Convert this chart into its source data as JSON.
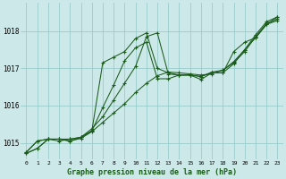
{
  "title": "Graphe pression niveau de la mer (hPa)",
  "bg_color": "#cce8e8",
  "grid_color": "#99cccc",
  "line_color": "#1a5c1a",
  "xlim": [
    -0.5,
    23.5
  ],
  "ylim": [
    1014.55,
    1018.75
  ],
  "yticks": [
    1015,
    1016,
    1017,
    1018
  ],
  "xtick_labels": [
    "0",
    "1",
    "2",
    "3",
    "4",
    "5",
    "6",
    "7",
    "8",
    "9",
    "10",
    "11",
    "12",
    "13",
    "14",
    "15",
    "16",
    "17",
    "18",
    "19",
    "20",
    "21",
    "22",
    "23"
  ],
  "series": [
    [
      1014.72,
      1014.85,
      1015.1,
      1015.1,
      1015.05,
      1015.12,
      1015.3,
      1015.55,
      1015.8,
      1016.05,
      1016.35,
      1016.6,
      1016.8,
      1016.9,
      1016.88,
      1016.85,
      1016.82,
      1016.85,
      1016.95,
      1017.15,
      1017.45,
      1017.85,
      1018.2,
      1018.32
    ],
    [
      1014.72,
      1014.85,
      1015.1,
      1015.1,
      1015.1,
      1015.15,
      1015.38,
      1015.7,
      1016.15,
      1016.6,
      1017.05,
      1017.85,
      1017.95,
      1016.85,
      1016.82,
      1016.82,
      1016.78,
      1016.9,
      1016.95,
      1017.18,
      1017.5,
      1017.9,
      1018.25,
      1018.38
    ],
    [
      1014.75,
      1015.05,
      1015.1,
      1015.05,
      1015.1,
      1015.15,
      1015.32,
      1017.15,
      1017.3,
      1017.45,
      1017.8,
      1017.95,
      1017.0,
      1016.88,
      1016.82,
      1016.82,
      1016.7,
      1016.88,
      1016.88,
      1017.45,
      1017.7,
      1017.82,
      1018.18,
      1018.38
    ],
    [
      1014.75,
      1015.05,
      1015.1,
      1015.1,
      1015.05,
      1015.15,
      1015.32,
      1015.95,
      1016.55,
      1017.2,
      1017.55,
      1017.7,
      1016.72,
      1016.72,
      1016.82,
      1016.82,
      1016.78,
      1016.88,
      1016.88,
      1017.12,
      1017.5,
      1017.82,
      1018.18,
      1018.28
    ]
  ]
}
